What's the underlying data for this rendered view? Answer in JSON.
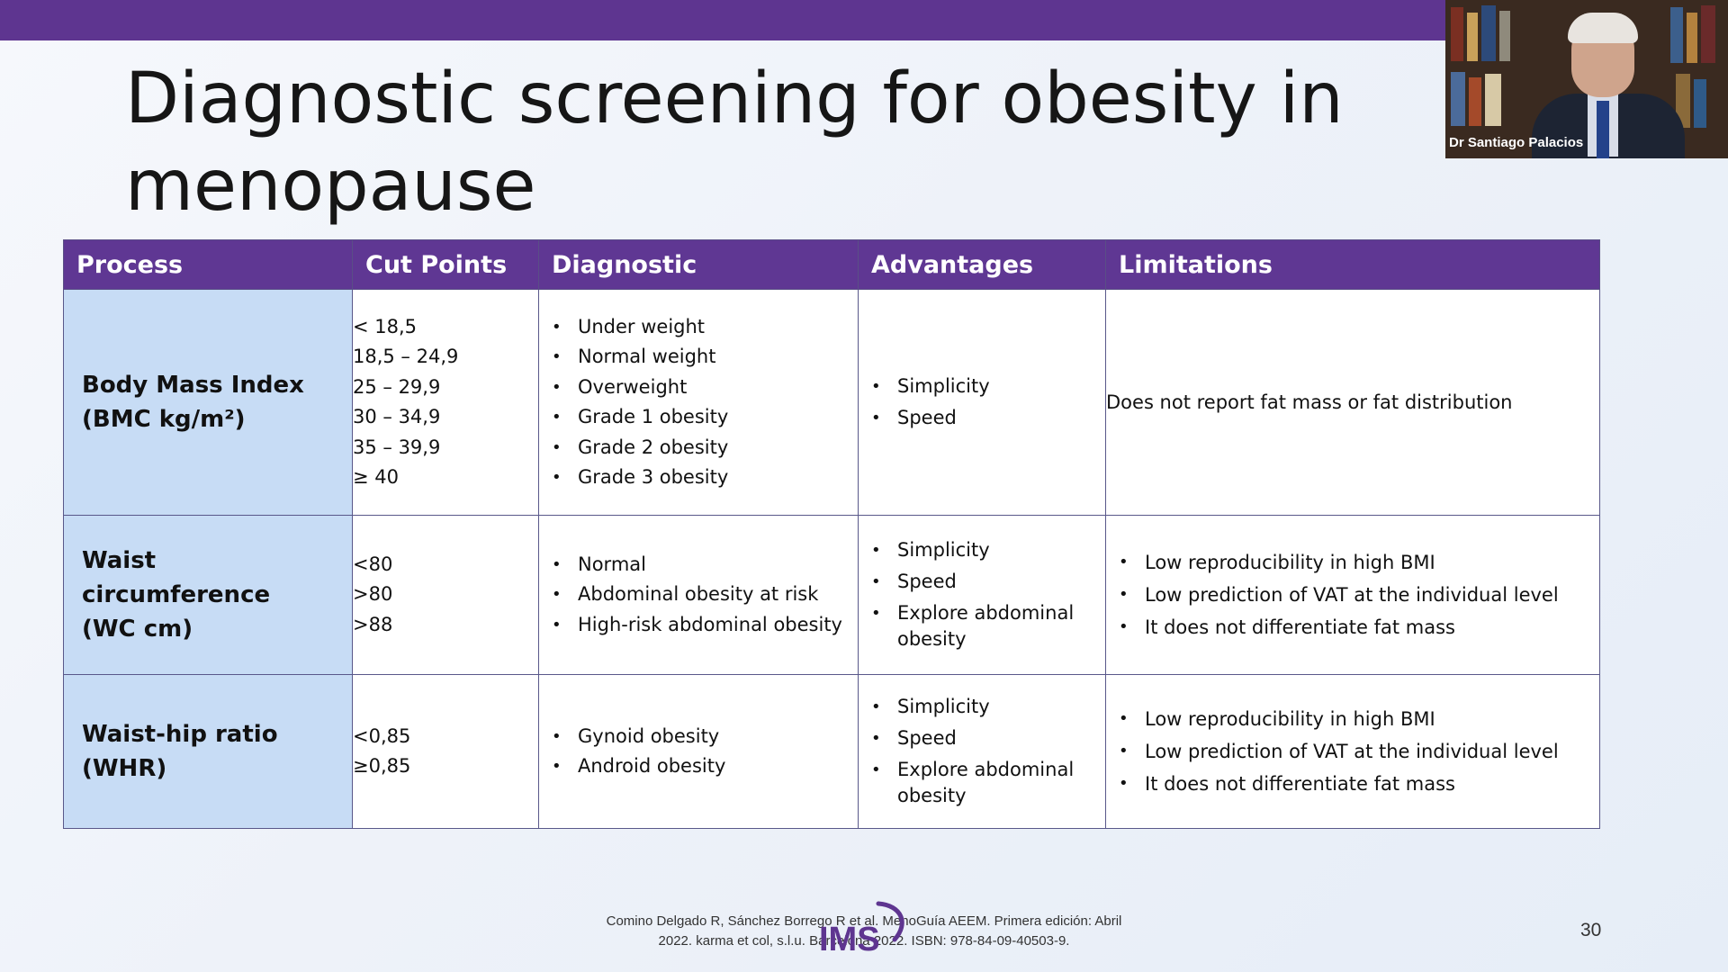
{
  "slide": {
    "title": "Diagnostic screening for obesity in menopause",
    "page_number": "30",
    "citation_line1": "Comino Delgado R, Sánchez Borrego R et al. MenoGuía AEEM. Primera edición: Abril",
    "citation_line2": "2022. karma et col, s.l.u. Barcelona 2022. ISBN: 978-84-09-40503-9.",
    "logo_text": "IMS"
  },
  "video": {
    "participant_name": "Dr Santiago Palacios"
  },
  "table": {
    "headers": [
      "Process",
      "Cut Points",
      "Diagnostic",
      "Advantages",
      "Limitations"
    ],
    "rows": [
      {
        "process_line1": "Body Mass Index",
        "process_line2": "(BMC kg/m²)",
        "cut_points": [
          "< 18,5",
          "18,5 – 24,9",
          "25 – 29,9",
          "30 – 34,9",
          "35 – 39,9",
          "≥ 40"
        ],
        "diagnostic": [
          "Under weight",
          "Normal weight",
          "Overweight",
          "Grade 1 obesity",
          "Grade 2 obesity",
          "Grade 3 obesity"
        ],
        "advantages": [
          "Simplicity",
          "Speed"
        ],
        "limitation": "Does not report fat mass or fat distribution"
      },
      {
        "process_line1": "Waist circumference",
        "process_line2": "(WC cm)",
        "cut_points": [
          "<80",
          ">80",
          ">88"
        ],
        "diagnostic": [
          "Normal",
          "Abdominal obesity at risk",
          "High-risk abdominal obesity"
        ],
        "advantages": [
          "Simplicity",
          "Speed",
          "Explore abdominal obesity"
        ],
        "limitations": [
          "Low reproducibility in high BMI",
          "Low prediction of VAT at the individual level",
          "It does not differentiate fat mass"
        ]
      },
      {
        "process_line1": "Waist-hip ratio",
        "process_line2": "(WHR)",
        "cut_points": [
          "<0,85",
          "≥0,85"
        ],
        "diagnostic": [
          "Gynoid obesity",
          "Android obesity"
        ],
        "advantages": [
          "Simplicity",
          "Speed",
          "Explore abdominal obesity"
        ],
        "limitations": [
          "Low reproducibility in high BMI",
          "Low prediction of VAT at the individual level",
          "It does not differentiate fat mass"
        ]
      }
    ]
  },
  "colors": {
    "accent_purple": "#5e3590",
    "process_cell_blue": "#c7dcf5"
  }
}
